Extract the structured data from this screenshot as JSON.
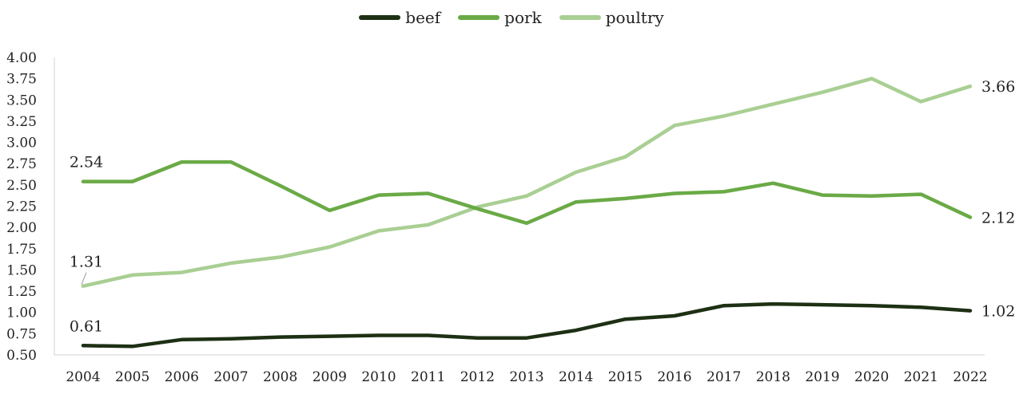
{
  "chart_data": {
    "type": "line",
    "title": "",
    "xlabel": "",
    "ylabel": "",
    "x": [
      "2004",
      "2005",
      "2006",
      "2007",
      "2008",
      "2009",
      "2010",
      "2011",
      "2012",
      "2013",
      "2014",
      "2015",
      "2016",
      "2017",
      "2018",
      "2019",
      "2020",
      "2021",
      "2022"
    ],
    "ylim": [
      0.5,
      4.0
    ],
    "yticks": [
      "0.50",
      "0.75",
      "1.00",
      "1.25",
      "1.50",
      "1.75",
      "2.00",
      "2.25",
      "2.50",
      "2.75",
      "3.00",
      "3.25",
      "3.50",
      "3.75",
      "4.00"
    ],
    "ytick_values": [
      0.5,
      0.75,
      1.0,
      1.25,
      1.5,
      1.75,
      2.0,
      2.25,
      2.5,
      2.75,
      3.0,
      3.25,
      3.5,
      3.75,
      4.0
    ],
    "grid": false,
    "legend_position": "top-center",
    "series": [
      {
        "name": "beef",
        "color": "#1e3014",
        "values": [
          0.61,
          0.6,
          0.68,
          0.69,
          0.71,
          0.72,
          0.73,
          0.73,
          0.7,
          0.7,
          0.79,
          0.92,
          0.96,
          1.08,
          1.1,
          1.09,
          1.08,
          1.06,
          1.02
        ],
        "labels": [
          {
            "index": 0,
            "text": "0.61"
          },
          {
            "index": 18,
            "text": "1.02"
          }
        ]
      },
      {
        "name": "pork",
        "color": "#6aaa46",
        "values": [
          2.54,
          2.54,
          2.77,
          2.77,
          2.49,
          2.2,
          2.38,
          2.4,
          2.22,
          2.05,
          2.3,
          2.34,
          2.4,
          2.42,
          2.52,
          2.38,
          2.37,
          2.39,
          2.12
        ],
        "labels": [
          {
            "index": 0,
            "text": "2.54"
          },
          {
            "index": 18,
            "text": "2.12"
          }
        ]
      },
      {
        "name": "poultry",
        "color": "#a9cf93",
        "values": [
          1.31,
          1.44,
          1.47,
          1.58,
          1.65,
          1.77,
          1.96,
          2.03,
          2.24,
          2.37,
          2.65,
          2.83,
          3.2,
          3.31,
          3.45,
          3.59,
          3.75,
          3.48,
          3.66
        ],
        "labels": [
          {
            "index": 0,
            "text": "1.31"
          },
          {
            "index": 18,
            "text": "3.66"
          }
        ]
      }
    ]
  }
}
